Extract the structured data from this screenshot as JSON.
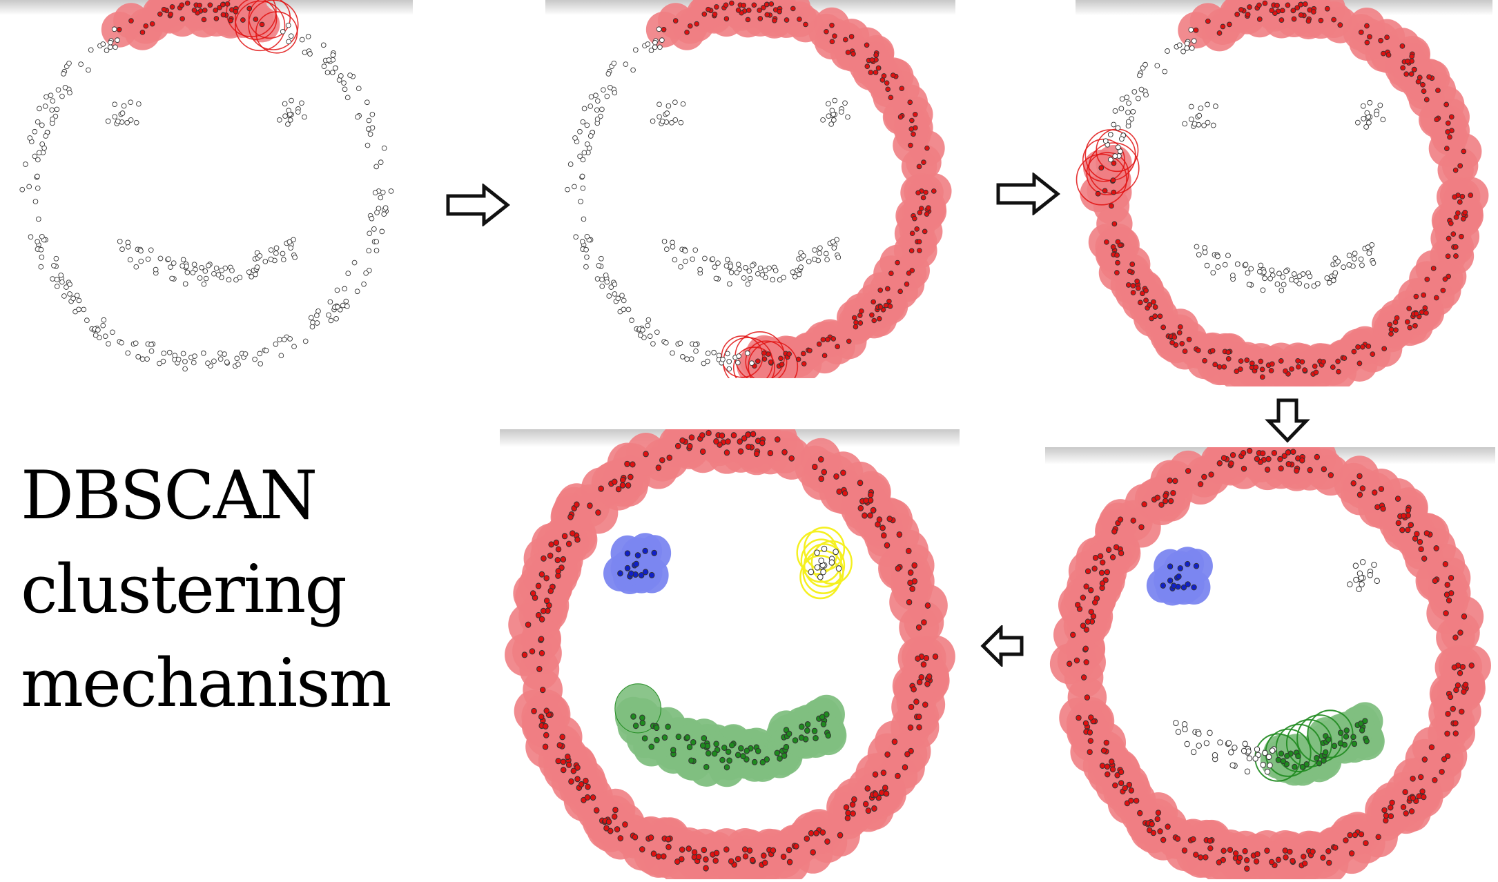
{
  "title": {
    "line1": "DBSCAN",
    "line2": "clustering",
    "line3": "mechanism"
  },
  "colors": {
    "cluster_red": "#f07e83",
    "point_red": "#e01010",
    "cluster_blue": "#7b86f0",
    "point_blue": "#1020c8",
    "cluster_green": "#7fbf7f",
    "point_green": "#1e8a1e",
    "search_yellow": "#f5f020",
    "unvisited_point": "#ffffff",
    "point_outline": "#333333",
    "arrow_stroke": "#111111"
  },
  "panels": [
    {
      "step": 1,
      "outer_progress": 0.14,
      "outer_start_angle": 120,
      "search": "outer-ring",
      "eyes": "none",
      "mouth": "none"
    },
    {
      "step": 2,
      "outer_progress": 0.58,
      "outer_start_angle": 120,
      "search": "outer-ring",
      "eyes": "none",
      "mouth": "none"
    },
    {
      "step": 3,
      "outer_progress": 0.86,
      "outer_start_angle": 120,
      "search": "outer-ring",
      "eyes": "none",
      "mouth": "none"
    },
    {
      "step": 4,
      "outer_progress": 1.0,
      "outer_start_angle": 120,
      "search": "mouth",
      "eyes": "left-blue",
      "mouth": "partial-green"
    },
    {
      "step": 5,
      "outer_progress": 1.0,
      "outer_start_angle": 120,
      "search": "right-eye",
      "eyes": "blue-and-yellow",
      "mouth": "full-green"
    }
  ],
  "arrows": [
    {
      "from": 1,
      "to": 2,
      "direction": "right"
    },
    {
      "from": 2,
      "to": 3,
      "direction": "right"
    },
    {
      "from": 3,
      "to": 4,
      "direction": "down"
    },
    {
      "from": 4,
      "to": 5,
      "direction": "left"
    }
  ]
}
